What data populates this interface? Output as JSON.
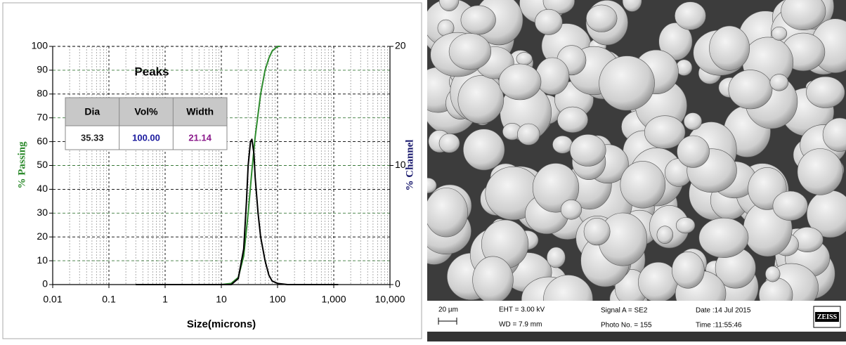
{
  "chart_data": {
    "type": "line",
    "xlabel": "Size(microns)",
    "ylabel": "% Passing",
    "y2label": "% Channel",
    "xscale": "log",
    "grid": true,
    "xlim": [
      0.01,
      10000
    ],
    "xticks": [
      0.01,
      0.1,
      1,
      10,
      100,
      {
        "value": 1000,
        "label": "1,000"
      },
      {
        "value": 10000,
        "label": "10,000"
      }
    ],
    "ylim": [
      0,
      100
    ],
    "yticks": [
      0,
      10,
      20,
      30,
      40,
      50,
      60,
      70,
      80,
      90,
      100
    ],
    "y2lim": [
      0,
      20
    ],
    "y2ticks": [
      0,
      10,
      20
    ],
    "series": [
      {
        "color": "#2e8b2e",
        "axis": "y",
        "x": [
          0.3,
          1,
          5,
          10,
          15,
          20,
          25,
          30,
          35,
          40,
          50,
          60,
          70,
          80,
          100,
          110
        ],
        "values": [
          0,
          0,
          0,
          0,
          0.5,
          3,
          12,
          30,
          48,
          62,
          80,
          90,
          95,
          98,
          100,
          100
        ]
      },
      {
        "color": "#000000",
        "axis": "y2",
        "x": [
          0.3,
          1,
          10,
          15,
          20,
          25,
          28,
          30,
          33,
          35,
          38,
          40,
          45,
          50,
          60,
          70,
          80,
          100,
          150,
          1200
        ],
        "values": [
          0,
          0,
          0,
          0,
          0.5,
          3,
          7,
          10,
          12,
          12.2,
          11,
          9,
          6,
          4,
          2,
          0.8,
          0.3,
          0.1,
          0,
          0
        ]
      }
    ],
    "peaks_table": {
      "title": "Peaks",
      "columns": [
        "Dia",
        "Vol%",
        "Width"
      ],
      "row": [
        "35.33",
        "100.00",
        "21.14"
      ]
    }
  },
  "micrograph": {
    "scale_bar": "20 µm",
    "info": [
      "EHT = 3.00 kV",
      "WD = 7.9 mm",
      "Signal A = SE2",
      "Photo No. = 155",
      "Date :14 Jul 2015",
      "Time :11:55:46"
    ],
    "logo": "ZEISS"
  }
}
